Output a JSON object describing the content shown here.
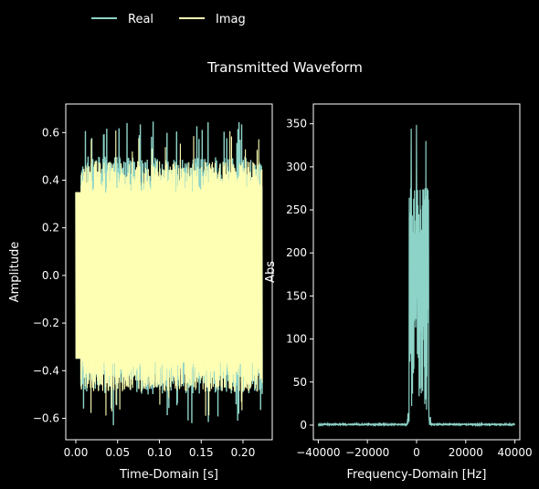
{
  "theme": {
    "background": "#000000",
    "foreground": "#ffffff",
    "real_color": "#8dd3c7",
    "imag_color": "#feffb3"
  },
  "legend": {
    "placement": "top-left",
    "entries": [
      {
        "label": "Real",
        "color": "#8dd3c7"
      },
      {
        "label": "Imag",
        "color": "#feffb3"
      }
    ]
  },
  "title": "Transmitted Waveform",
  "chart_data": [
    {
      "type": "line",
      "xlabel": "Time-Domain [s]",
      "ylabel": "Amplitude",
      "xlim": [
        -0.012,
        0.235
      ],
      "ylim": [
        -0.69,
        0.72
      ],
      "xticks": [
        0.0,
        0.05,
        0.1,
        0.15,
        0.2
      ],
      "xtick_labels": [
        "0.00",
        "0.05",
        "0.10",
        "0.15",
        "0.20"
      ],
      "yticks": [
        -0.6,
        -0.4,
        -0.2,
        0.0,
        0.2,
        0.4,
        0.6
      ],
      "ytick_labels": [
        "−0.6",
        "−0.4",
        "−0.2",
        "0.0",
        "0.2",
        "0.4",
        "0.6"
      ],
      "grid": false,
      "series": [
        {
          "name": "Real",
          "color": "#8dd3c7",
          "x_range": [
            0.0,
            0.223
          ],
          "envelope_upper": 0.5,
          "envelope_lower": -0.5,
          "peak_max": 0.65,
          "peak_min": -0.63
        },
        {
          "name": "Imag",
          "color": "#feffb3",
          "x_range": [
            0.0,
            0.223
          ],
          "envelope_upper": 0.48,
          "envelope_lower": -0.49,
          "peak_max": 0.61,
          "peak_min": -0.6
        }
      ]
    },
    {
      "type": "line",
      "xlabel": "Frequency-Domain [Hz]",
      "ylabel": "Abs",
      "xlim": [
        -42000,
        42000
      ],
      "ylim": [
        -17,
        373
      ],
      "xticks": [
        -40000,
        -20000,
        0,
        20000,
        40000
      ],
      "xtick_labels": [
        "−40000",
        "−20000",
        "0",
        "20000",
        "40000"
      ],
      "yticks": [
        0,
        50,
        100,
        150,
        200,
        250,
        300,
        350
      ],
      "ytick_labels": [
        "0",
        "50",
        "100",
        "150",
        "200",
        "250",
        "300",
        "350"
      ],
      "grid": false,
      "series": [
        {
          "name": "Abs",
          "color": "#8dd3c7",
          "x_range": [
            -40000,
            40000
          ],
          "band": [
            -3000,
            5000
          ],
          "typical_in_band": 290,
          "peak": 356
        }
      ]
    }
  ]
}
